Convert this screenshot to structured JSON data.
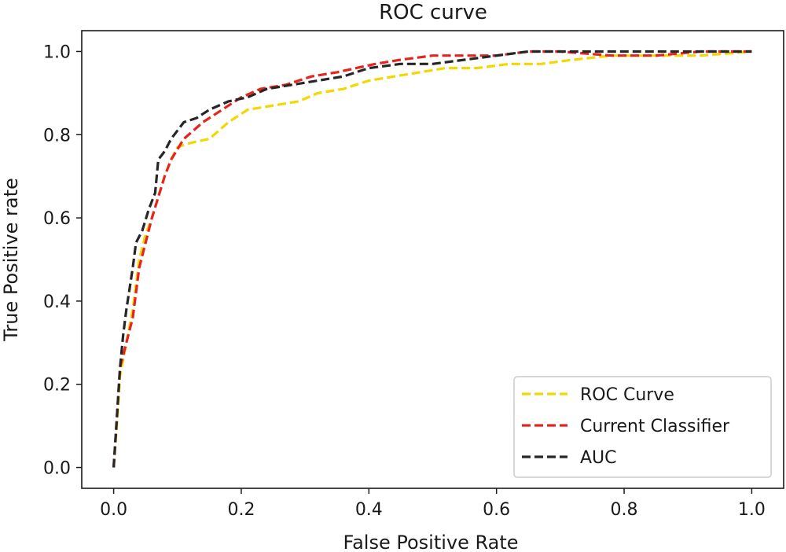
{
  "chart_data": {
    "type": "line",
    "title": "ROC curve",
    "xlabel": "False Positive Rate",
    "ylabel": "True Positive rate",
    "xlim": [
      -0.05,
      1.05
    ],
    "ylim": [
      -0.05,
      1.05
    ],
    "xticks": [
      0.0,
      0.2,
      0.4,
      0.6,
      0.8,
      1.0
    ],
    "yticks": [
      0.0,
      0.2,
      0.4,
      0.6,
      0.8,
      1.0
    ],
    "xtick_labels": [
      "0.0",
      "0.2",
      "0.4",
      "0.6",
      "0.8",
      "1.0"
    ],
    "ytick_labels": [
      "0.0",
      "0.2",
      "0.4",
      "0.6",
      "0.8",
      "1.0"
    ],
    "grid": false,
    "legend_position": "lower-right",
    "series": [
      {
        "name": "ROC Curve",
        "color": "#f2d800",
        "linestyle": "dashed",
        "x": [
          0.0,
          0.005,
          0.01,
          0.02,
          0.03,
          0.035,
          0.04,
          0.05,
          0.06,
          0.07,
          0.08,
          0.09,
          0.1,
          0.12,
          0.15,
          0.18,
          0.21,
          0.25,
          0.29,
          0.32,
          0.36,
          0.4,
          0.44,
          0.48,
          0.52,
          0.57,
          0.62,
          0.67,
          0.72,
          0.78,
          0.85,
          0.92,
          1.0
        ],
        "y": [
          0.0,
          0.1,
          0.22,
          0.3,
          0.38,
          0.44,
          0.5,
          0.56,
          0.6,
          0.65,
          0.7,
          0.74,
          0.77,
          0.78,
          0.79,
          0.83,
          0.86,
          0.87,
          0.88,
          0.9,
          0.91,
          0.93,
          0.94,
          0.95,
          0.96,
          0.96,
          0.97,
          0.97,
          0.98,
          0.99,
          0.99,
          0.99,
          1.0
        ]
      },
      {
        "name": "Current Classifier",
        "color": "#e8231e",
        "linestyle": "dashed",
        "x": [
          0.0,
          0.005,
          0.01,
          0.02,
          0.03,
          0.035,
          0.04,
          0.05,
          0.06,
          0.07,
          0.08,
          0.09,
          0.11,
          0.14,
          0.17,
          0.2,
          0.23,
          0.27,
          0.31,
          0.35,
          0.38,
          0.41,
          0.45,
          0.5,
          0.55,
          0.6,
          0.65,
          0.7,
          0.78,
          0.85,
          0.92,
          1.0
        ],
        "y": [
          0.0,
          0.12,
          0.24,
          0.3,
          0.36,
          0.42,
          0.48,
          0.54,
          0.6,
          0.65,
          0.7,
          0.74,
          0.79,
          0.83,
          0.86,
          0.89,
          0.91,
          0.92,
          0.94,
          0.95,
          0.96,
          0.97,
          0.98,
          0.99,
          0.99,
          0.99,
          1.0,
          1.0,
          0.99,
          0.99,
          1.0,
          1.0
        ]
      },
      {
        "name": "AUC",
        "color": "#262626",
        "linestyle": "dashed",
        "x": [
          0.0,
          0.005,
          0.01,
          0.015,
          0.02,
          0.025,
          0.03,
          0.035,
          0.045,
          0.055,
          0.065,
          0.07,
          0.08,
          0.09,
          0.11,
          0.13,
          0.15,
          0.18,
          0.21,
          0.24,
          0.28,
          0.32,
          0.36,
          0.4,
          0.45,
          0.5,
          0.55,
          0.6,
          0.65,
          0.7,
          0.8,
          0.9,
          1.0
        ],
        "y": [
          0.0,
          0.12,
          0.24,
          0.32,
          0.38,
          0.43,
          0.48,
          0.54,
          0.57,
          0.62,
          0.66,
          0.74,
          0.76,
          0.79,
          0.83,
          0.84,
          0.86,
          0.88,
          0.89,
          0.91,
          0.92,
          0.93,
          0.94,
          0.96,
          0.97,
          0.97,
          0.98,
          0.99,
          1.0,
          1.0,
          1.0,
          1.0,
          1.0
        ]
      }
    ]
  }
}
